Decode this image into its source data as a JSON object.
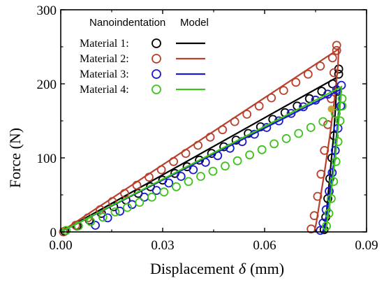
{
  "chart_data": {
    "type": "scatter",
    "title": "",
    "xlabel": "Displacement",
    "xlabel_symbol": "δ",
    "xlabel_unit": "(mm)",
    "ylabel": "Force (N)",
    "xlim": [
      0,
      0.09
    ],
    "ylim": [
      0,
      300
    ],
    "xticks": [
      0.0,
      0.03,
      0.06,
      0.09
    ],
    "xtick_labels": [
      "0.00",
      "0.03",
      "0.06",
      "0.09"
    ],
    "yticks": [
      0,
      100,
      200,
      300
    ],
    "ytick_labels": [
      "0",
      "100",
      "200",
      "300"
    ],
    "grid": false,
    "legend": {
      "placement": "top-left",
      "header_markers": "Nanoindentation",
      "header_lines": "Model"
    },
    "series": [
      {
        "name": "Material 1:",
        "color": "#000000",
        "model_x": [
          0.0,
          0.081,
          0.0812,
          0.0809,
          0.0803,
          0.0794,
          0.0786,
          0.078,
          0.0777
        ],
        "model_y": [
          0,
          208,
          200,
          170,
          130,
          85,
          45,
          15,
          0
        ],
        "nano_x": [
          0.0012,
          0.0048,
          0.0084,
          0.012,
          0.0156,
          0.0192,
          0.0228,
          0.0264,
          0.03,
          0.0336,
          0.0372,
          0.0408,
          0.0444,
          0.048,
          0.0516,
          0.0552,
          0.0588,
          0.0624,
          0.066,
          0.0696,
          0.0732,
          0.0768,
          0.08,
          0.0818,
          0.0818,
          0.0815,
          0.081,
          0.0804,
          0.0798,
          0.0792,
          0.0786,
          0.078,
          0.0775
        ],
        "nano_y": [
          1,
          8,
          16,
          25,
          34,
          43,
          52,
          61,
          70,
          79,
          88,
          97,
          106,
          115,
          124,
          133,
          142,
          152,
          161,
          170,
          180,
          190,
          200,
          213,
          220,
          190,
          160,
          130,
          100,
          72,
          45,
          20,
          3
        ]
      },
      {
        "name": "Material 2:",
        "color": "#b8402c",
        "model_x": [
          0.0,
          0.0818,
          0.0816,
          0.0806,
          0.0792,
          0.0776,
          0.0762,
          0.0752,
          0.0746
        ],
        "model_y": [
          0,
          247,
          225,
          180,
          130,
          80,
          40,
          12,
          0
        ],
        "nano_x": [
          0.0008,
          0.0044,
          0.008,
          0.0116,
          0.0152,
          0.0188,
          0.0224,
          0.026,
          0.0296,
          0.0332,
          0.0368,
          0.0404,
          0.044,
          0.0476,
          0.0512,
          0.0548,
          0.0584,
          0.062,
          0.0656,
          0.0692,
          0.0728,
          0.0764,
          0.08,
          0.0812,
          0.0812,
          0.0804,
          0.0796,
          0.0786,
          0.0776,
          0.0766,
          0.0756,
          0.0746,
          0.0737
        ],
        "nano_y": [
          0,
          9,
          19,
          30,
          41,
          52,
          63,
          74,
          84,
          95,
          106,
          117,
          128,
          138,
          149,
          159,
          170,
          181,
          191,
          202,
          213,
          224,
          235,
          245,
          252,
          215,
          180,
          145,
          110,
          78,
          48,
          22,
          4
        ]
      },
      {
        "name": "Material 3:",
        "color": "#1a1ad0",
        "model_x": [
          0.0,
          0.0822,
          0.082,
          0.0814,
          0.0805,
          0.0794,
          0.0784,
          0.0776,
          0.0771
        ],
        "model_y": [
          0,
          192,
          175,
          140,
          100,
          60,
          28,
          8,
          0
        ],
        "nano_x": [
          0.0102,
          0.0138,
          0.0174,
          0.021,
          0.0246,
          0.0282,
          0.0318,
          0.0354,
          0.039,
          0.0426,
          0.0462,
          0.0498,
          0.0534,
          0.057,
          0.0606,
          0.0642,
          0.0678,
          0.0714,
          0.075,
          0.0786,
          0.0812,
          0.0826,
          0.0824,
          0.0816,
          0.0808,
          0.0799,
          0.079,
          0.0781,
          0.0772,
          0.0764
        ],
        "nano_y": [
          9,
          19,
          28,
          37,
          47,
          56,
          66,
          75,
          84,
          94,
          103,
          113,
          122,
          132,
          141,
          150,
          160,
          169,
          178,
          186,
          192,
          198,
          170,
          140,
          110,
          80,
          55,
          30,
          12,
          2
        ]
      },
      {
        "name": "Material 4:",
        "color": "#3dc31a",
        "model_x": [
          0.0,
          0.0826,
          0.0824,
          0.0818,
          0.081,
          0.08,
          0.079,
          0.0782,
          0.0778
        ],
        "model_y": [
          0,
          196,
          180,
          150,
          110,
          68,
          32,
          8,
          0
        ],
        "nano_x": [
          0.0016,
          0.0052,
          0.0088,
          0.0124,
          0.016,
          0.0196,
          0.0232,
          0.0268,
          0.0304,
          0.034,
          0.0376,
          0.0412,
          0.0448,
          0.0484,
          0.052,
          0.0556,
          0.0592,
          0.0628,
          0.0664,
          0.07,
          0.0736,
          0.0772,
          0.0808,
          0.0828,
          0.0828,
          0.0822,
          0.0816,
          0.081,
          0.0803,
          0.0796,
          0.0789,
          0.0782
        ],
        "nano_y": [
          2,
          8,
          14,
          20,
          27,
          33,
          40,
          47,
          54,
          61,
          68,
          75,
          82,
          89,
          96,
          104,
          111,
          119,
          126,
          133,
          141,
          149,
          160,
          170,
          180,
          150,
          122,
          95,
          68,
          45,
          25,
          8
        ]
      }
    ],
    "annotations": [
      {
        "x": 0.0796,
        "y": 166,
        "color": "#c9a43a",
        "marker": "filled-circle"
      }
    ]
  }
}
